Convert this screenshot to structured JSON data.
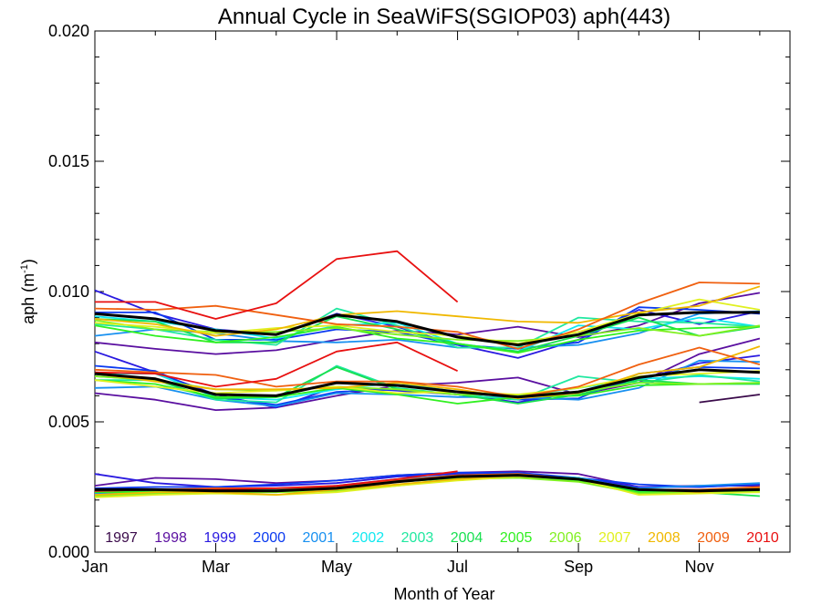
{
  "chart_data": {
    "type": "line",
    "title": "Annual Cycle in SeaWiFS(SGIOP03) aph(443)",
    "xlabel": "Month of Year",
    "ylabel": "aph (m",
    "ylabel_sup": "-1",
    "ylabel_close": ")",
    "xlim": [
      1,
      12.5
    ],
    "ylim": [
      0.0,
      0.02
    ],
    "x_ticks": [
      {
        "value": 1,
        "label": "Jan"
      },
      {
        "value": 3,
        "label": "Mar"
      },
      {
        "value": 5,
        "label": "May"
      },
      {
        "value": 7,
        "label": "Jul"
      },
      {
        "value": 9,
        "label": "Sep"
      },
      {
        "value": 11,
        "label": "Nov"
      }
    ],
    "y_ticks": [
      {
        "value": 0.0,
        "label": "0.000"
      },
      {
        "value": 0.005,
        "label": "0.005"
      },
      {
        "value": 0.01,
        "label": "0.010"
      },
      {
        "value": 0.015,
        "label": "0.015"
      },
      {
        "value": 0.02,
        "label": "0.020"
      }
    ],
    "x": [
      1,
      2,
      3,
      4,
      5,
      6,
      7,
      8,
      9,
      10,
      11,
      12
    ],
    "series": [
      {
        "name": "1997",
        "color": "#3a0a4a",
        "high": [
          null,
          null,
          null,
          null,
          null,
          null,
          null,
          null,
          null,
          null,
          null,
          null
        ],
        "mid": [
          null,
          null,
          null,
          null,
          null,
          null,
          null,
          null,
          null,
          null,
          5.75,
          6.05
        ],
        "low": [
          null,
          null,
          null,
          null,
          null,
          null,
          null,
          null,
          null,
          null,
          null,
          null
        ]
      },
      {
        "name": "1998",
        "color": "#5a0fa0",
        "high": [
          8.05,
          7.8,
          7.6,
          7.75,
          8.15,
          8.5,
          8.35,
          8.65,
          8.25,
          8.7,
          9.55,
          9.95
        ],
        "mid": [
          6.1,
          5.85,
          5.45,
          5.55,
          6.0,
          6.4,
          6.5,
          6.7,
          6.05,
          6.5,
          7.6,
          8.2
        ],
        "low": [
          2.55,
          2.85,
          2.8,
          2.65,
          2.75,
          2.95,
          3.05,
          3.1,
          3.0,
          2.5,
          2.55,
          2.55
        ]
      },
      {
        "name": "1999",
        "color": "#2a1ae0",
        "high": [
          10.05,
          9.15,
          8.55,
          8.35,
          9.15,
          8.65,
          7.95,
          7.45,
          8.15,
          9.3,
          8.75,
          9.25
        ],
        "mid": [
          7.7,
          6.9,
          6.05,
          5.55,
          6.35,
          6.2,
          6.05,
          5.75,
          6.15,
          6.6,
          7.25,
          7.55
        ],
        "low": [
          3.0,
          2.65,
          2.5,
          2.55,
          2.65,
          2.9,
          3.0,
          3.0,
          2.85,
          2.5,
          2.5,
          2.6
        ]
      },
      {
        "name": "2000",
        "color": "#0a3af0",
        "high": [
          9.2,
          9.2,
          8.15,
          8.15,
          8.55,
          8.45,
          7.95,
          7.8,
          8.05,
          9.4,
          9.3,
          9.15
        ],
        "mid": [
          7.15,
          6.95,
          5.95,
          5.65,
          6.15,
          6.25,
          6.05,
          5.85,
          5.9,
          6.85,
          7.1,
          7.05
        ],
        "low": [
          2.45,
          2.5,
          2.5,
          2.6,
          2.75,
          2.95,
          3.05,
          3.05,
          2.85,
          2.6,
          2.5,
          2.6
        ]
      },
      {
        "name": "2001",
        "color": "#1890f0",
        "high": [
          8.3,
          8.55,
          8.4,
          8.1,
          8.05,
          8.15,
          7.85,
          7.85,
          7.95,
          8.4,
          9.15,
          9.25
        ],
        "mid": [
          6.3,
          6.35,
          5.85,
          5.6,
          6.1,
          6.05,
          5.95,
          5.95,
          5.85,
          6.3,
          7.35,
          7.3
        ],
        "low": [
          2.25,
          2.35,
          2.35,
          2.4,
          2.55,
          2.8,
          2.95,
          3.0,
          2.8,
          2.45,
          2.55,
          2.65
        ]
      },
      {
        "name": "2002",
        "color": "#10e8f0",
        "high": [
          9.05,
          8.85,
          8.55,
          8.2,
          8.7,
          8.8,
          8.0,
          7.7,
          8.7,
          8.55,
          9.0,
          8.65
        ],
        "mid": [
          6.85,
          6.85,
          5.95,
          5.85,
          6.25,
          6.5,
          6.15,
          6.0,
          6.3,
          6.65,
          6.75,
          6.65
        ],
        "low": [
          2.4,
          2.4,
          2.35,
          2.35,
          2.5,
          2.75,
          2.9,
          2.95,
          2.85,
          2.4,
          2.35,
          2.45
        ]
      },
      {
        "name": "2003",
        "color": "#20e8a0",
        "high": [
          8.75,
          8.55,
          8.15,
          7.95,
          9.35,
          8.7,
          7.85,
          7.85,
          9.0,
          8.85,
          8.8,
          8.65
        ],
        "mid": [
          6.6,
          6.6,
          5.85,
          5.75,
          7.15,
          6.3,
          6.05,
          5.85,
          6.75,
          6.5,
          6.8,
          6.55
        ],
        "low": [
          2.3,
          2.35,
          2.35,
          2.4,
          2.55,
          2.75,
          2.9,
          2.95,
          2.8,
          2.35,
          2.35,
          2.4
        ]
      },
      {
        "name": "2004",
        "color": "#18e050",
        "high": [
          8.95,
          8.85,
          8.05,
          8.05,
          9.05,
          8.55,
          8.0,
          7.7,
          8.3,
          9.0,
          8.3,
          8.65
        ],
        "mid": [
          6.75,
          6.6,
          5.9,
          5.95,
          7.1,
          6.25,
          6.05,
          5.7,
          6.05,
          6.6,
          6.45,
          6.45
        ],
        "low": [
          2.35,
          2.35,
          2.3,
          2.3,
          2.5,
          2.7,
          2.85,
          2.95,
          2.75,
          2.3,
          2.3,
          2.15
        ]
      },
      {
        "name": "2005",
        "color": "#30f020",
        "high": [
          8.7,
          8.3,
          8.05,
          8.25,
          8.65,
          8.2,
          8.0,
          7.65,
          8.15,
          8.5,
          8.6,
          8.65
        ],
        "mid": [
          6.6,
          6.45,
          5.95,
          5.95,
          6.3,
          6.05,
          5.7,
          5.95,
          6.0,
          6.4,
          6.45,
          6.5
        ],
        "low": [
          2.3,
          2.3,
          2.3,
          2.35,
          2.45,
          2.7,
          2.85,
          2.9,
          2.75,
          2.3,
          2.3,
          2.35
        ]
      },
      {
        "name": "2006",
        "color": "#80f020",
        "high": [
          8.9,
          8.55,
          8.45,
          8.45,
          8.6,
          8.35,
          8.15,
          8.1,
          8.3,
          8.6,
          8.3,
          8.7
        ],
        "mid": [
          6.75,
          6.6,
          6.25,
          6.2,
          6.35,
          6.25,
          6.05,
          6.05,
          6.15,
          6.5,
          6.45,
          6.5
        ],
        "low": [
          2.15,
          2.25,
          2.3,
          2.3,
          2.35,
          2.55,
          2.8,
          2.85,
          2.7,
          2.25,
          2.3,
          2.3
        ]
      },
      {
        "name": "2007",
        "color": "#e0f020",
        "high": [
          8.8,
          8.65,
          8.4,
          8.6,
          8.7,
          8.45,
          8.3,
          8.0,
          8.45,
          9.15,
          9.7,
          9.3
        ],
        "mid": [
          6.6,
          6.35,
          6.1,
          6.2,
          6.35,
          6.1,
          6.15,
          6.05,
          6.3,
          6.75,
          6.85,
          6.95
        ],
        "low": [
          2.1,
          2.2,
          2.25,
          2.2,
          2.3,
          2.55,
          2.75,
          2.9,
          2.8,
          2.2,
          2.25,
          2.3
        ]
      },
      {
        "name": "2008",
        "color": "#f0b800",
        "high": [
          8.95,
          8.75,
          8.3,
          8.55,
          9.1,
          9.25,
          9.05,
          8.85,
          8.8,
          9.2,
          9.45,
          10.2
        ],
        "mid": [
          6.85,
          6.55,
          6.25,
          6.25,
          6.3,
          6.5,
          6.25,
          5.9,
          6.1,
          6.85,
          7.1,
          7.9
        ],
        "low": [
          2.2,
          2.3,
          2.3,
          2.2,
          2.4,
          2.6,
          2.8,
          2.95,
          2.8,
          2.4,
          2.3,
          2.45
        ]
      },
      {
        "name": "2009",
        "color": "#f06010",
        "high": [
          9.35,
          9.3,
          9.45,
          9.1,
          8.75,
          8.65,
          8.45,
          7.8,
          8.55,
          9.55,
          10.35,
          10.3
        ],
        "mid": [
          7.0,
          6.9,
          6.8,
          6.35,
          6.55,
          6.55,
          6.35,
          5.95,
          6.35,
          7.2,
          7.85,
          7.2
        ],
        "low": [
          2.35,
          2.4,
          2.45,
          2.45,
          2.5,
          2.75,
          2.95,
          3.0,
          2.8,
          2.4,
          2.4,
          2.5
        ]
      },
      {
        "name": "2010",
        "color": "#e81010",
        "high": [
          9.6,
          9.6,
          8.95,
          9.55,
          11.25,
          11.55,
          9.6,
          null,
          null,
          null,
          null,
          null
        ],
        "mid": [
          6.9,
          6.85,
          6.35,
          6.65,
          7.7,
          8.05,
          6.95,
          null,
          null,
          null,
          null,
          null
        ],
        "low": [
          2.35,
          2.4,
          2.4,
          2.45,
          2.55,
          2.8,
          3.1,
          null,
          null,
          null,
          null,
          null
        ]
      }
    ],
    "mean": {
      "color": "#000000",
      "high": [
        9.15,
        8.95,
        8.5,
        8.35,
        9.1,
        8.85,
        8.25,
        7.95,
        8.35,
        9.1,
        9.2,
        9.2
      ],
      "mid": [
        6.85,
        6.65,
        6.05,
        6.0,
        6.5,
        6.4,
        6.15,
        5.95,
        6.15,
        6.7,
        7.0,
        6.9
      ],
      "low": [
        2.4,
        2.4,
        2.35,
        2.35,
        2.45,
        2.7,
        2.9,
        2.95,
        2.8,
        2.4,
        2.35,
        2.4
      ]
    },
    "y_value_scale": 0.001,
    "legend_placement": "bottom"
  }
}
